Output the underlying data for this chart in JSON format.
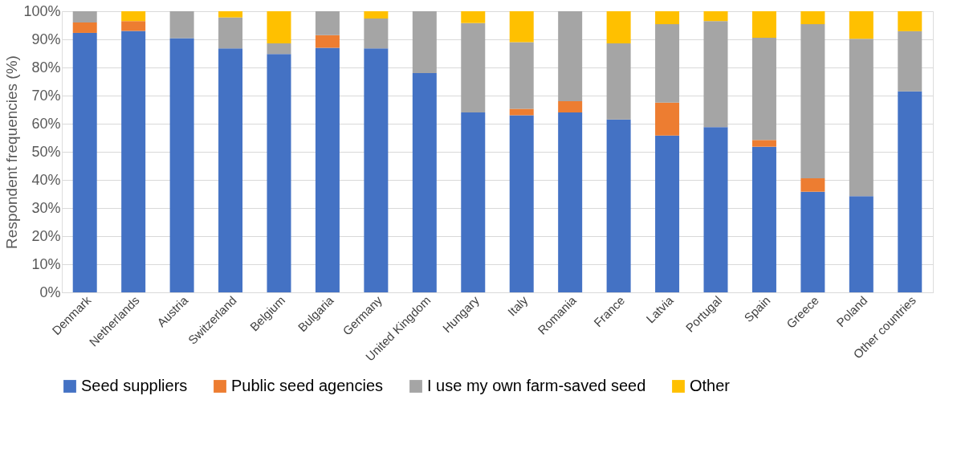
{
  "chart_data": {
    "type": "bar",
    "stacked": true,
    "ylabel": "Respondent frequencies (%)",
    "categories": [
      "Denmark",
      "Netherlands",
      "Austria",
      "Switzerland",
      "Belgium",
      "Bulgaria",
      "Germany",
      "United Kingdom",
      "Hungary",
      "Italy",
      "Romania",
      "France",
      "Latvia",
      "Portugal",
      "Spain",
      "Greece",
      "Poland",
      "Other countries"
    ],
    "series": [
      {
        "name": "Seed suppliers",
        "color": "#4472c4",
        "values": [
          92.3,
          93,
          90.4,
          86.8,
          84.8,
          87,
          86.8,
          78,
          64,
          63,
          64,
          61.5,
          55.8,
          58.8,
          51.8,
          35.8,
          34.2,
          71.5
        ]
      },
      {
        "name": "Public seed agencies",
        "color": "#ed7d31",
        "values": [
          3.7,
          3.5,
          0,
          0,
          0,
          4.5,
          0,
          0,
          0,
          2.3,
          4,
          0,
          11.7,
          0,
          2.4,
          4.8,
          0,
          0
        ]
      },
      {
        "name": "I use my own farm-saved seed",
        "color": "#a5a5a5",
        "values": [
          4,
          0,
          9.6,
          11,
          3.8,
          8.5,
          10.6,
          22,
          31.8,
          23.7,
          32,
          27.1,
          27.9,
          37.7,
          36.4,
          54.8,
          56,
          21.4
        ]
      },
      {
        "name": "Other",
        "color": "#ffc000",
        "values": [
          0,
          3.5,
          0,
          2.2,
          11.4,
          0,
          2.6,
          0,
          4.2,
          11,
          0,
          11.4,
          4.6,
          3.5,
          9.4,
          4.6,
          9.8,
          7.1
        ]
      }
    ],
    "ylim": [
      0,
      100
    ],
    "yticks": [
      {
        "value": 0,
        "label": "0%"
      },
      {
        "value": 10,
        "label": "10%"
      },
      {
        "value": 20,
        "label": "20%"
      },
      {
        "value": 30,
        "label": "30%"
      },
      {
        "value": 40,
        "label": "40%"
      },
      {
        "value": 50,
        "label": "50%"
      },
      {
        "value": 60,
        "label": "60%"
      },
      {
        "value": 70,
        "label": "70%"
      },
      {
        "value": 80,
        "label": "80%"
      },
      {
        "value": 90,
        "label": "90%"
      },
      {
        "value": 100,
        "label": "100%"
      }
    ],
    "grid": "y",
    "legend": "bottom"
  }
}
